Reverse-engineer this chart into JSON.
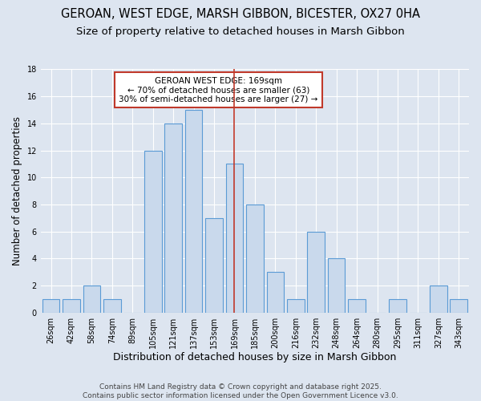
{
  "title": "GEROAN, WEST EDGE, MARSH GIBBON, BICESTER, OX27 0HA",
  "subtitle": "Size of property relative to detached houses in Marsh Gibbon",
  "xlabel": "Distribution of detached houses by size in Marsh Gibbon",
  "ylabel": "Number of detached properties",
  "categories": [
    "26sqm",
    "42sqm",
    "58sqm",
    "74sqm",
    "89sqm",
    "105sqm",
    "121sqm",
    "137sqm",
    "153sqm",
    "169sqm",
    "185sqm",
    "200sqm",
    "216sqm",
    "232sqm",
    "248sqm",
    "264sqm",
    "280sqm",
    "295sqm",
    "311sqm",
    "327sqm",
    "343sqm"
  ],
  "values": [
    1,
    1,
    2,
    1,
    0,
    12,
    14,
    15,
    7,
    11,
    8,
    3,
    1,
    6,
    4,
    1,
    0,
    1,
    0,
    2,
    1
  ],
  "bar_color": "#c9d9ec",
  "bar_edge_color": "#5b9bd5",
  "vline_x_index": 9,
  "vline_color": "#c0392b",
  "annotation_line1": "GEROAN WEST EDGE: 169sqm",
  "annotation_line2": "← 70% of detached houses are smaller (63)",
  "annotation_line3": "30% of semi-detached houses are larger (27) →",
  "annotation_box_color": "#ffffff",
  "annotation_box_edge_color": "#c0392b",
  "ylim": [
    0,
    18
  ],
  "yticks": [
    0,
    2,
    4,
    6,
    8,
    10,
    12,
    14,
    16,
    18
  ],
  "background_color": "#dde5f0",
  "grid_color": "#ffffff",
  "footer_text": "Contains HM Land Registry data © Crown copyright and database right 2025.\nContains public sector information licensed under the Open Government Licence v3.0.",
  "title_fontsize": 10.5,
  "subtitle_fontsize": 9.5,
  "xlabel_fontsize": 9,
  "ylabel_fontsize": 8.5,
  "tick_fontsize": 7,
  "annotation_fontsize": 7.5,
  "footer_fontsize": 6.5
}
